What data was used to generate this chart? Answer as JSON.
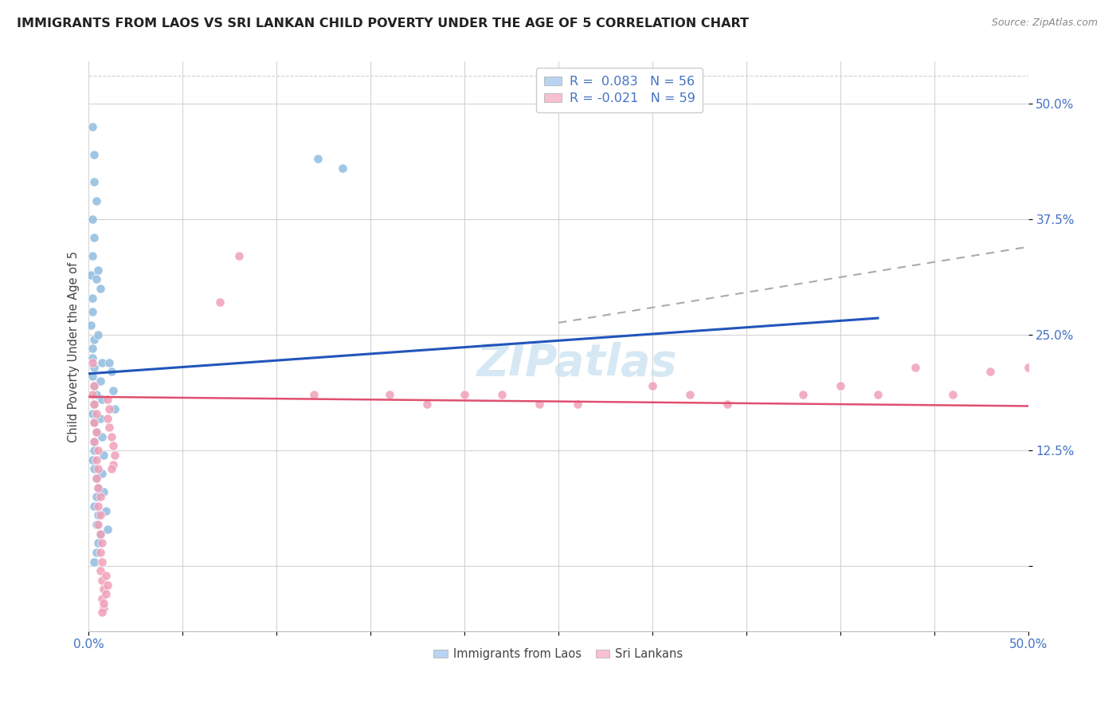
{
  "title": "IMMIGRANTS FROM LAOS VS SRI LANKAN CHILD POVERTY UNDER THE AGE OF 5 CORRELATION CHART",
  "source": "Source: ZipAtlas.com",
  "ylabel": "Child Poverty Under the Age of 5",
  "xlim": [
    0.0,
    0.5
  ],
  "ylim": [
    -0.07,
    0.545
  ],
  "ytick_positions": [
    0.0,
    0.125,
    0.25,
    0.375,
    0.5
  ],
  "ytick_labels": [
    "",
    "12.5%",
    "25.0%",
    "37.5%",
    "50.0%"
  ],
  "xtick_positions": [
    0.0,
    0.05,
    0.1,
    0.15,
    0.2,
    0.25,
    0.3,
    0.35,
    0.4,
    0.45,
    0.5
  ],
  "xtick_labels": [
    "0.0%",
    "",
    "",
    "",
    "",
    "",
    "",
    "",
    "",
    "",
    "50.0%"
  ],
  "background_color": "#ffffff",
  "grid_color": "#d0d0d0",
  "blue_dot_color": "#90bce0",
  "pink_dot_color": "#f0a0b8",
  "blue_line_color": "#2255bb",
  "pink_line_color": "#e05070",
  "dashed_line_color": "#aaaaaa",
  "legend_blue_fill": "#b8d4f0",
  "legend_pink_fill": "#f8c0d0",
  "watermark_color": "#c5dff0",
  "blue_line_x0": 0.0,
  "blue_line_y0": 0.208,
  "blue_line_x1": 0.42,
  "blue_line_y1": 0.268,
  "dash_line_x0": 0.25,
  "dash_line_y0": 0.263,
  "dash_line_x1": 0.5,
  "dash_line_y1": 0.345,
  "pink_line_x0": 0.0,
  "pink_line_y0": 0.183,
  "pink_line_x1": 0.5,
  "pink_line_y1": 0.173,
  "blue_x": [
    0.002,
    0.003,
    0.003,
    0.004,
    0.002,
    0.003,
    0.002,
    0.001,
    0.002,
    0.002,
    0.001,
    0.003,
    0.002,
    0.002,
    0.003,
    0.002,
    0.003,
    0.004,
    0.003,
    0.002,
    0.003,
    0.004,
    0.003,
    0.003,
    0.002,
    0.003,
    0.004,
    0.005,
    0.004,
    0.003,
    0.005,
    0.004,
    0.006,
    0.005,
    0.004,
    0.003,
    0.005,
    0.004,
    0.006,
    0.005,
    0.007,
    0.006,
    0.007,
    0.006,
    0.007,
    0.008,
    0.007,
    0.008,
    0.009,
    0.01,
    0.011,
    0.012,
    0.013,
    0.014,
    0.122,
    0.135
  ],
  "blue_y": [
    0.475,
    0.445,
    0.415,
    0.395,
    0.375,
    0.355,
    0.335,
    0.315,
    0.29,
    0.275,
    0.26,
    0.245,
    0.235,
    0.225,
    0.215,
    0.205,
    0.195,
    0.185,
    0.175,
    0.165,
    0.155,
    0.145,
    0.135,
    0.125,
    0.115,
    0.105,
    0.095,
    0.085,
    0.075,
    0.065,
    0.055,
    0.045,
    0.035,
    0.025,
    0.015,
    0.005,
    0.32,
    0.31,
    0.3,
    0.25,
    0.22,
    0.2,
    0.18,
    0.16,
    0.14,
    0.12,
    0.1,
    0.08,
    0.06,
    0.04,
    0.22,
    0.21,
    0.19,
    0.17,
    0.44,
    0.43
  ],
  "pink_x": [
    0.002,
    0.003,
    0.002,
    0.003,
    0.004,
    0.003,
    0.004,
    0.003,
    0.005,
    0.004,
    0.005,
    0.004,
    0.005,
    0.006,
    0.005,
    0.006,
    0.005,
    0.006,
    0.007,
    0.006,
    0.007,
    0.006,
    0.007,
    0.008,
    0.007,
    0.008,
    0.007,
    0.008,
    0.009,
    0.01,
    0.009,
    0.01,
    0.011,
    0.01,
    0.011,
    0.012,
    0.013,
    0.014,
    0.013,
    0.012,
    0.07,
    0.08,
    0.12,
    0.16,
    0.18,
    0.2,
    0.22,
    0.24,
    0.26,
    0.3,
    0.32,
    0.34,
    0.38,
    0.4,
    0.42,
    0.44,
    0.46,
    0.48,
    0.5
  ],
  "pink_y": [
    0.22,
    0.195,
    0.185,
    0.175,
    0.165,
    0.155,
    0.145,
    0.135,
    0.125,
    0.115,
    0.105,
    0.095,
    0.085,
    0.075,
    0.065,
    0.055,
    0.045,
    0.035,
    0.025,
    0.015,
    0.005,
    -0.005,
    -0.015,
    -0.025,
    -0.035,
    -0.045,
    -0.05,
    -0.04,
    -0.03,
    -0.02,
    -0.01,
    0.18,
    0.17,
    0.16,
    0.15,
    0.14,
    0.13,
    0.12,
    0.11,
    0.105,
    0.285,
    0.335,
    0.185,
    0.185,
    0.175,
    0.185,
    0.185,
    0.175,
    0.175,
    0.195,
    0.185,
    0.175,
    0.185,
    0.195,
    0.185,
    0.215,
    0.185,
    0.21,
    0.215
  ]
}
